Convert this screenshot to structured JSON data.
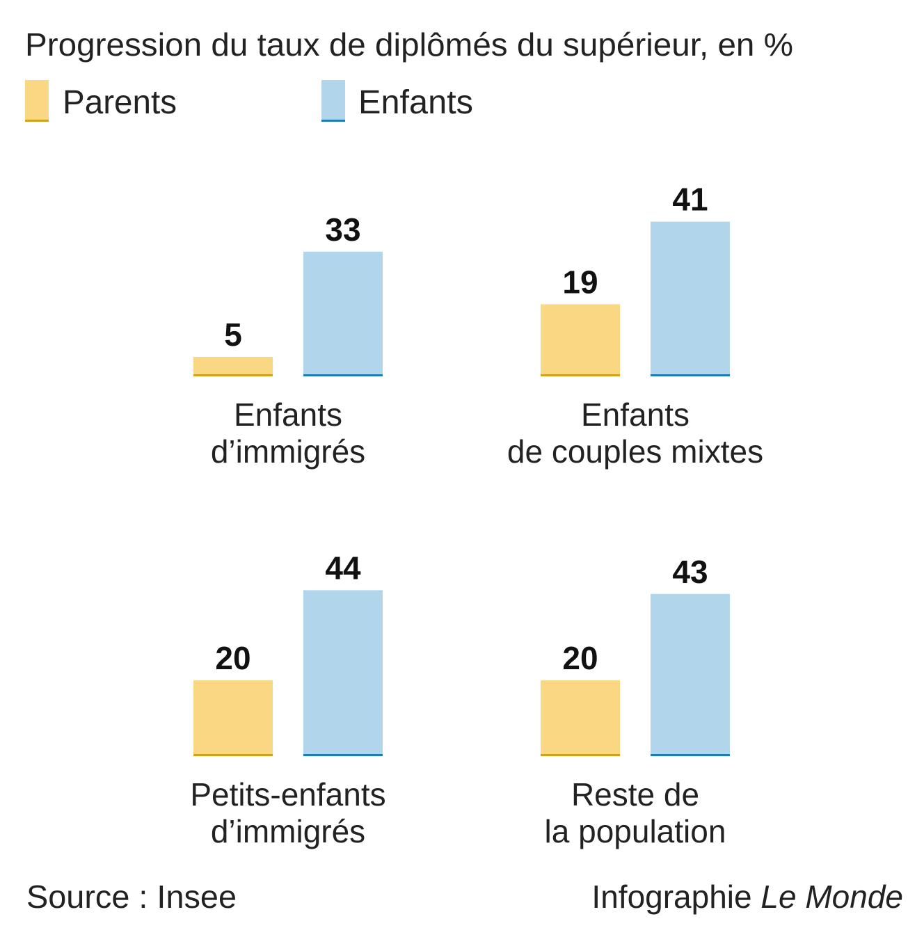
{
  "chart_data": {
    "type": "bar",
    "title": "Progression du taux de diplômés du supérieur, en %",
    "legend": [
      {
        "name": "Parents",
        "color": "#f9d783",
        "line": "#d4a21a"
      },
      {
        "name": "Enfants",
        "color": "#b1d5ea",
        "line": "#1a7db9"
      }
    ],
    "legend_position": "top-left",
    "groups": [
      {
        "label_lines": [
          "Enfants",
          "d’immigrés"
        ],
        "values": [
          5,
          33
        ]
      },
      {
        "label_lines": [
          "Enfants",
          "de couples mixtes"
        ],
        "values": [
          19,
          41
        ]
      },
      {
        "label_lines": [
          "Petits-enfants",
          "d’immigrés"
        ],
        "values": [
          20,
          44
        ]
      },
      {
        "label_lines": [
          "Reste de",
          "la population"
        ],
        "values": [
          20,
          43
        ]
      }
    ],
    "series_names": [
      "Parents",
      "Enfants"
    ],
    "ylim": [
      0,
      50
    ],
    "grid": false
  },
  "footer": {
    "source": "Source : Insee",
    "credit_prefix": "Infographie ",
    "credit_brand": "Le Monde"
  }
}
